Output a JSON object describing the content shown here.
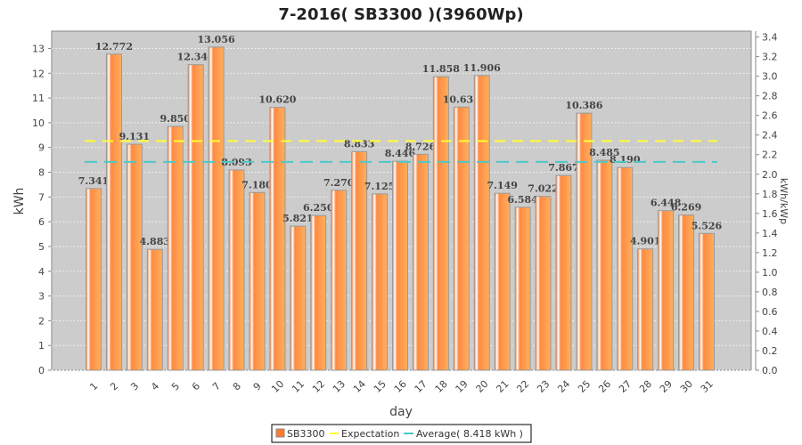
{
  "chart_data": {
    "type": "bar",
    "title": "7-2016( SB3300 )(3960Wp)",
    "xlabel": "day",
    "ylabel": "kWh",
    "ylabel_right": "kWh/kWp",
    "ylim": [
      0,
      13.7
    ],
    "ylim_right": [
      0,
      3.46
    ],
    "kwp": 3.96,
    "grid": true,
    "legend_position": "bottom",
    "categories": [
      "1",
      "2",
      "3",
      "4",
      "5",
      "6",
      "7",
      "8",
      "9",
      "10",
      "11",
      "12",
      "13",
      "14",
      "15",
      "16",
      "17",
      "18",
      "19",
      "20",
      "21",
      "22",
      "23",
      "24",
      "25",
      "26",
      "27",
      "28",
      "29",
      "30",
      "31"
    ],
    "series": [
      {
        "name": "SB3300",
        "color": "#ff8c40",
        "values": [
          7.341,
          12.772,
          9.131,
          4.883,
          9.85,
          12.345,
          13.056,
          8.093,
          7.18,
          10.62,
          5.821,
          6.25,
          7.27,
          8.833,
          7.125,
          8.446,
          8.726,
          11.858,
          10.633,
          11.906,
          7.149,
          6.584,
          7.022,
          7.867,
          10.386,
          8.485,
          8.19,
          4.901,
          6.448,
          6.269,
          5.526
        ],
        "labels": [
          "7.341",
          "12.772",
          "9.131",
          "4.883",
          "9.850",
          "12.345",
          "13.056",
          "8.093",
          "7.180",
          "10.620",
          "5.821",
          "6.250",
          "7.270",
          "8.833",
          "7.125",
          "8.446",
          "8.726",
          "11.858",
          "10.633",
          "11.906",
          "7.149",
          "6.584",
          "7.022",
          "7.867",
          "10.386",
          "8.485",
          "8.190",
          "4.901",
          "6.448",
          "6.269",
          "5.526"
        ]
      }
    ],
    "lines": [
      {
        "name": "Expectation",
        "value": 9.26,
        "color": "#ffff33"
      },
      {
        "name": "Average( 8.418 kWh )",
        "value": 8.418,
        "color": "#4cc8c8"
      }
    ],
    "yticks": [
      "0",
      "1",
      "2",
      "3",
      "4",
      "5",
      "6",
      "7",
      "8",
      "9",
      "10",
      "11",
      "12",
      "13"
    ],
    "yticks_right": [
      "0.0",
      "0.2",
      "0.4",
      "0.6",
      "0.8",
      "1.0",
      "1.2",
      "1.4",
      "1.6",
      "1.8",
      "2.0",
      "2.2",
      "2.4",
      "2.6",
      "2.8",
      "3.0",
      "3.2",
      "3.4"
    ]
  }
}
